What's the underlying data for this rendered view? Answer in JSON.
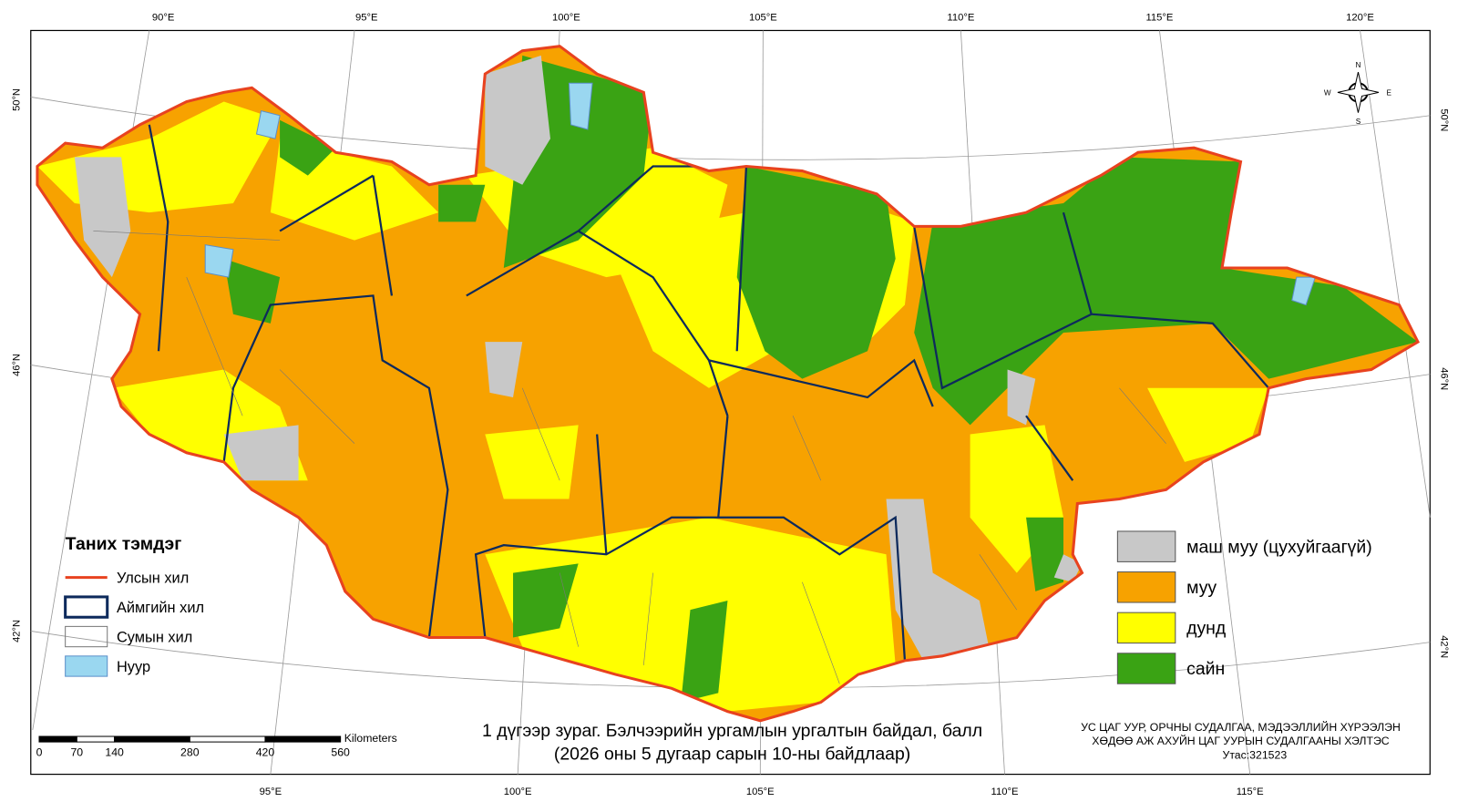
{
  "graticule": {
    "top": [
      "90°E",
      "95°E",
      "100°E",
      "105°E",
      "110°E",
      "115°E",
      "120°E"
    ],
    "bottom": [
      "95°E",
      "100°E",
      "105°E",
      "110°E",
      "115°E"
    ],
    "left": [
      "50°N",
      "46°N",
      "42°N"
    ],
    "right": [
      "50°N",
      "46°N",
      "42°N"
    ]
  },
  "compass": {
    "n": "N",
    "s": "S",
    "e": "E",
    "w": "W"
  },
  "legend": {
    "title": "Таних тэмдэг",
    "items": [
      "Улсын хил",
      "Аймгийн хил",
      "Сумын хил",
      "Нуур"
    ]
  },
  "classes": [
    {
      "label": "маш муу (цухуйгаагүй)",
      "color": "#c8c8c8"
    },
    {
      "label": "муу",
      "color": "#f7a200"
    },
    {
      "label": "дунд",
      "color": "#ffff00"
    },
    {
      "label": "сайн",
      "color": "#3aa314"
    }
  ],
  "scale": {
    "unit": "Kilometers",
    "ticks": [
      0,
      70,
      140,
      280,
      420,
      560
    ]
  },
  "caption": [
    "1 дүгээр зураг. Бэлчээрийн ургамлын ургалтын байдал, балл",
    "(2026 оны 5 дугаар сарын 10-ны байдлаар)"
  ],
  "credit": [
    "УС ЦАГ УУР, ОРЧНЫ СУДАЛГАА, МЭДЭЭЛЛИЙН ХҮРЭЭЛЭН",
    "ХӨДӨӨ АЖ АХУЙН ЦАГ УУРЫН СУДАЛГААНЫ ХЭЛТЭС",
    "Утас:321523"
  ]
}
